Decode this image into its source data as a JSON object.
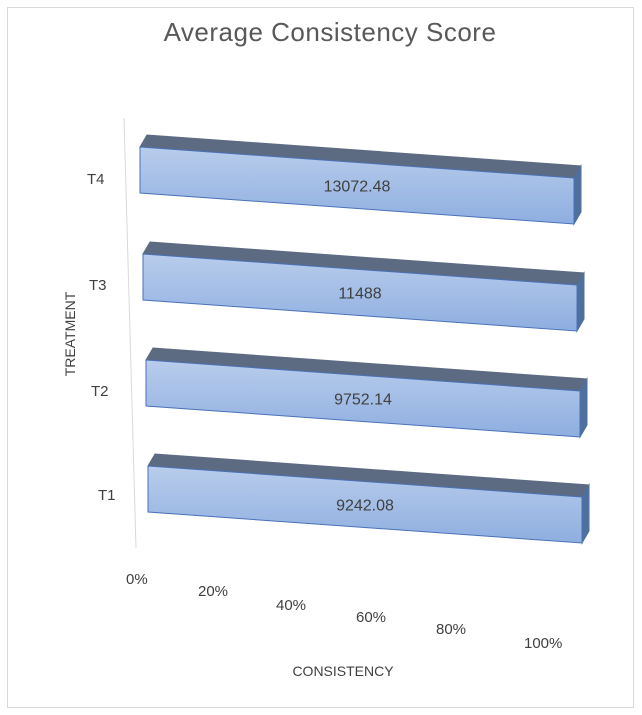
{
  "chart_data": {
    "type": "bar",
    "orientation": "horizontal",
    "style": "3d",
    "title": "Average Consistency Score",
    "xlabel": "CONSISTENCY",
    "ylabel": "TREATMENT",
    "categories": [
      "T1",
      "T2",
      "T3",
      "T4"
    ],
    "series": [
      {
        "values": [
          9242.08,
          9752.14,
          11488,
          13072.48
        ],
        "labels": [
          "9242.08",
          "9752.14",
          "11488",
          "13072.48"
        ]
      }
    ],
    "x_tick_labels": [
      "0%",
      "20%",
      "40%",
      "60%",
      "80%",
      "100%"
    ],
    "xlim": [
      0,
      100
    ],
    "stacking": "100% stacked",
    "grid": false,
    "legend": "none",
    "colors": {
      "bar_front_top": "#b9cdec",
      "bar_front_bottom": "#8eaee0",
      "bar_top": "#5d6b82",
      "bar_side": "#4f6f9e",
      "bar_border": "#4a72b8"
    }
  }
}
